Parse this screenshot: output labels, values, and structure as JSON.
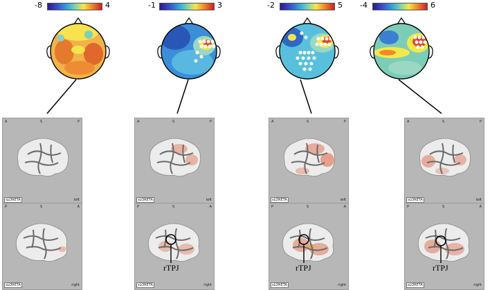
{
  "columns": [
    {
      "cb_min": "-8",
      "cb_max": "4",
      "has_rtpj": false,
      "intensity": 0
    },
    {
      "cb_min": "-1",
      "cb_max": "3",
      "has_rtpj": true,
      "intensity": 1
    },
    {
      "cb_min": "-2",
      "cb_max": "5",
      "has_rtpj": true,
      "intensity": 2
    },
    {
      "cb_min": "-4",
      "cb_max": "6",
      "has_rtpj": true,
      "intensity": 1.5
    }
  ],
  "panel_labels": {
    "top": {
      "left": "A",
      "mid": "S",
      "right": "P",
      "hemisphere": "left"
    },
    "bottom": {
      "left": "P",
      "mid": "S",
      "right": "A",
      "hemisphere": "right"
    },
    "software": "sLORETA"
  },
  "annotation": "rTPJ",
  "colors": {
    "panel_bg": "#b7b7b7",
    "brain": "#ececec",
    "activation": "#e0603a"
  }
}
